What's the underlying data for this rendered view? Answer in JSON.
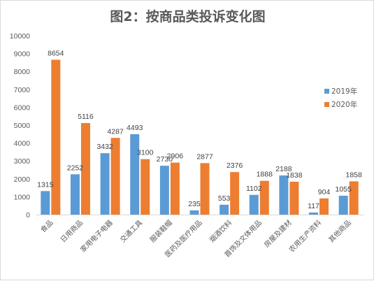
{
  "chart_data": {
    "type": "bar",
    "title": "图2：按商品类投诉变化图",
    "categories": [
      "食品",
      "日用商品",
      "家用电子电器",
      "交通工具",
      "服装鞋帽",
      "医药及医疗用品",
      "烟酒饮料",
      "首饰及文体用品",
      "房屋及建材",
      "农用生产资料",
      "其他商品"
    ],
    "series": [
      {
        "name": "2019年",
        "color": "#5b9bd5",
        "values": [
          1315,
          2252,
          3432,
          4493,
          2730,
          235,
          553,
          1102,
          2188,
          117,
          1055
        ]
      },
      {
        "name": "2020年",
        "color": "#ed7d31",
        "values": [
          8654,
          5116,
          4287,
          3100,
          2906,
          2877,
          2376,
          1888,
          1838,
          904,
          1858
        ]
      }
    ],
    "ylim": [
      0,
      10000
    ],
    "yticks": [
      0,
      1000,
      2000,
      3000,
      4000,
      5000,
      6000,
      7000,
      8000,
      9000,
      10000
    ],
    "grid": false,
    "legend": "right",
    "xlabel": "",
    "ylabel": ""
  }
}
